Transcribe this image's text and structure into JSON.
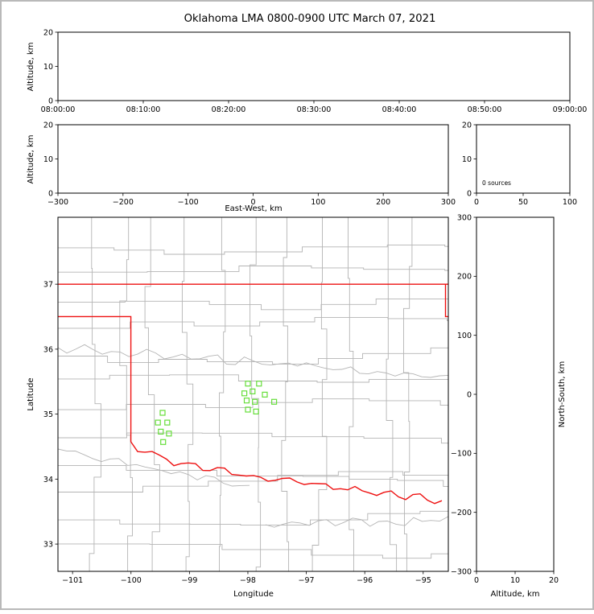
{
  "title": "Oklahoma LMA 0800-0900 UTC March 07, 2021",
  "colors": {
    "axes": "#000000",
    "frame": "#b9b9b9",
    "background": "#ffffff",
    "state_border": "#ee1111",
    "county_lines": "#b4b4b4",
    "station_marker": "#66de3a"
  },
  "chart_data": [
    {
      "id": "time_height_panel",
      "type": "scatter",
      "xlabel": "",
      "ylabel": "Altitude, km",
      "x_tick_labels": [
        "08:00:00",
        "08:10:00",
        "08:20:00",
        "08:30:00",
        "08:40:00",
        "08:50:00",
        "09:00:00"
      ],
      "ylim": [
        0,
        20
      ],
      "y_tick_values": [
        0,
        10,
        20
      ],
      "y_tick_labels": [
        "0",
        "10",
        "20"
      ],
      "points": []
    },
    {
      "id": "ew_height_panel",
      "type": "scatter",
      "xlabel": "East-West, km",
      "ylabel": "Altitude, km",
      "xlim": [
        -300,
        300
      ],
      "x_tick_values": [
        -300,
        -200,
        -100,
        0,
        100,
        200,
        300
      ],
      "x_tick_labels": [
        "−300",
        "−200",
        "−100",
        "0",
        "100",
        "200",
        "300"
      ],
      "ylim": [
        0,
        20
      ],
      "y_tick_values": [
        0,
        10,
        20
      ],
      "y_tick_labels": [
        "0",
        "10",
        "20"
      ],
      "points": []
    },
    {
      "id": "altitude_source_histogram",
      "type": "line",
      "annotation": "0 sources",
      "xlim": [
        0,
        100
      ],
      "x_tick_values": [
        0,
        50,
        100
      ],
      "x_tick_labels": [
        "0",
        "50",
        "100"
      ],
      "ylim": [
        0,
        20
      ],
      "y_tick_values": [
        0,
        10,
        20
      ],
      "y_tick_labels": [
        "0",
        "10",
        "20"
      ],
      "points": []
    },
    {
      "id": "plan_view_map",
      "type": "scatter",
      "xlabel": "Longitude",
      "ylabel": "Latitude",
      "xlim": [
        -101.25,
        -94.57
      ],
      "x_tick_values": [
        -101,
        -100,
        -99,
        -98,
        -97,
        -96,
        -95
      ],
      "x_tick_labels": [
        "−101",
        "−100",
        "−99",
        "−98",
        "−97",
        "−96",
        "−95"
      ],
      "ylim": [
        32.58,
        38.03
      ],
      "y_tick_values": [
        33,
        34,
        35,
        36,
        37
      ],
      "y_tick_labels": [
        "33",
        "34",
        "35",
        "36",
        "37"
      ],
      "marker": "square",
      "stations_lon_lat": [
        [
          -98.0,
          35.47
        ],
        [
          -97.81,
          35.47
        ],
        [
          -98.06,
          35.32
        ],
        [
          -97.92,
          35.35
        ],
        [
          -97.71,
          35.3
        ],
        [
          -98.02,
          35.21
        ],
        [
          -97.88,
          35.19
        ],
        [
          -98.0,
          35.07
        ],
        [
          -97.86,
          35.04
        ],
        [
          -97.55,
          35.19
        ],
        [
          -99.46,
          35.02
        ],
        [
          -99.54,
          34.87
        ],
        [
          -99.38,
          34.87
        ],
        [
          -99.49,
          34.73
        ],
        [
          -99.35,
          34.7
        ],
        [
          -99.45,
          34.57
        ]
      ]
    },
    {
      "id": "ns_height_panel",
      "type": "scatter",
      "xlabel": "Altitude, km",
      "ylabel": "North-South, km",
      "xlim": [
        0,
        20
      ],
      "x_tick_values": [
        0,
        10,
        20
      ],
      "x_tick_labels": [
        "0",
        "10",
        "20"
      ],
      "ylim": [
        -300,
        300
      ],
      "y_tick_values": [
        -300,
        -200,
        -100,
        0,
        100,
        200,
        300
      ],
      "y_tick_labels": [
        "−300",
        "−200",
        "−100",
        "0",
        "100",
        "200",
        "300"
      ],
      "points": []
    }
  ]
}
